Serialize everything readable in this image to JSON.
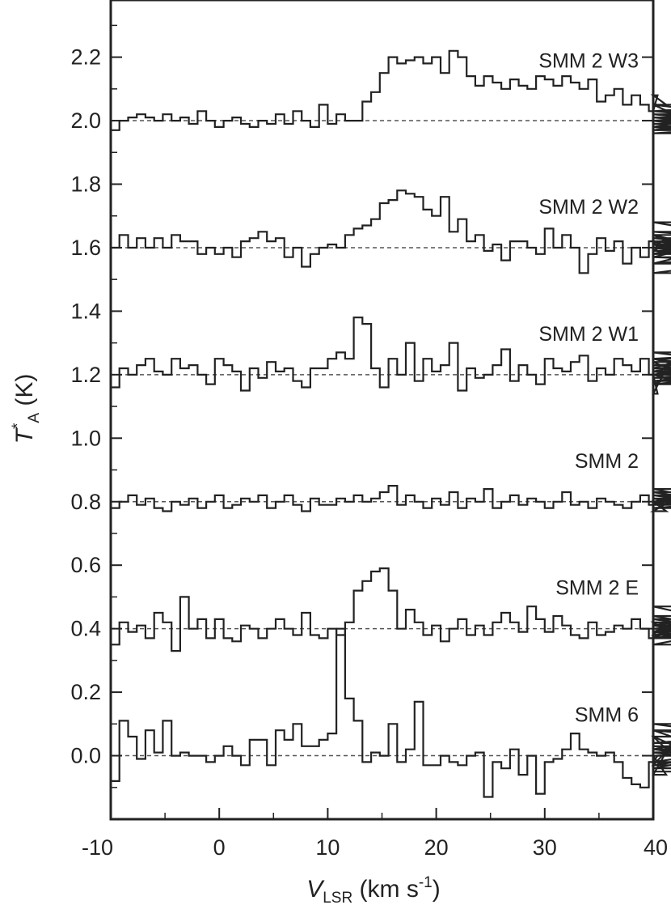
{
  "chart_data": {
    "type": "line",
    "xlabel": {
      "main": "V",
      "sub": "LSR",
      "unit": " (km s",
      "sup": "-1",
      "close": ")"
    },
    "ylabel": {
      "main": "T",
      "sup": "*",
      "sub": "A",
      "unit": " (K)"
    },
    "xlim": [
      -10,
      40
    ],
    "ylim": [
      -0.2,
      2.38
    ],
    "xticks": [
      -10,
      0,
      10,
      20,
      30,
      40
    ],
    "xtick_labels": [
      "-10",
      "0",
      "10",
      "20",
      "30",
      "40"
    ],
    "yticks": [
      0.0,
      0.2,
      0.4,
      0.6,
      0.8,
      1.0,
      1.2,
      1.4,
      1.6,
      1.8,
      2.0,
      2.2
    ],
    "ytick_labels": [
      "0.0",
      "0.2",
      "0.4",
      "0.6",
      "0.8",
      "1.0",
      "1.2",
      "1.4",
      "1.6",
      "1.8",
      "2.0",
      "2.2"
    ],
    "x_channels_start": -10,
    "x_channel_width": 0.8,
    "series": [
      {
        "name": "SMM 6",
        "baseline": 0.0,
        "label_x": 35,
        "label_y": 0.13,
        "values": [
          -0.08,
          0.11,
          0.06,
          -0.01,
          0.08,
          0.01,
          0.11,
          0.0,
          0.01,
          0.0,
          0.0,
          -0.02,
          0.0,
          0.03,
          0.0,
          -0.03,
          0.05,
          0.05,
          -0.03,
          0.08,
          0.05,
          0.1,
          0.03,
          0.03,
          0.05,
          0.07,
          0.4,
          0.18,
          0.11,
          -0.02,
          0.01,
          0.0,
          0.1,
          -0.02,
          0.02,
          0.17,
          -0.03,
          -0.03,
          0.0,
          -0.02,
          -0.03,
          0.0,
          0.01,
          -0.13,
          -0.02,
          -0.04,
          0.02,
          -0.06,
          0.0,
          -0.12,
          -0.02,
          -0.01,
          0.02,
          0.07,
          0.02,
          0.01,
          0.0,
          0.01,
          -0.02,
          -0.07,
          -0.09,
          -0.1,
          -0.02,
          0.0,
          -0.06,
          0.06,
          -0.03,
          0.1,
          0.08,
          0.02,
          0.06,
          -0.04,
          0.01,
          0.02,
          -0.02,
          0.03,
          0.0,
          0.01,
          -0.04,
          -0.03,
          0.04,
          0.08,
          0.03,
          0.0,
          0.02,
          -0.02,
          -0.05
        ]
      },
      {
        "name": "SMM 2 E",
        "baseline": 0.4,
        "label_x": 35,
        "label_y": 0.53,
        "values": [
          0.35,
          0.42,
          0.39,
          0.41,
          0.37,
          0.45,
          0.42,
          0.33,
          0.5,
          0.4,
          0.43,
          0.37,
          0.43,
          0.37,
          0.36,
          0.41,
          0.4,
          0.37,
          0.4,
          0.43,
          0.4,
          0.38,
          0.45,
          0.38,
          0.37,
          0.4,
          0.38,
          0.42,
          0.52,
          0.55,
          0.58,
          0.59,
          0.52,
          0.4,
          0.46,
          0.42,
          0.38,
          0.41,
          0.36,
          0.4,
          0.43,
          0.38,
          0.41,
          0.38,
          0.42,
          0.45,
          0.42,
          0.39,
          0.47,
          0.43,
          0.39,
          0.44,
          0.41,
          0.38,
          0.37,
          0.42,
          0.38,
          0.39,
          0.41,
          0.4,
          0.43,
          0.4,
          0.37,
          0.38,
          0.42,
          0.37,
          0.41,
          0.39,
          0.44,
          0.41,
          0.39,
          0.35,
          0.4,
          0.42,
          0.39,
          0.43,
          0.38,
          0.41,
          0.47,
          0.37,
          0.43,
          0.42,
          0.39,
          0.41,
          0.37,
          0.4,
          0.38
        ]
      },
      {
        "name": "SMM 2",
        "baseline": 0.8,
        "label_x": 35,
        "label_y": 0.93,
        "values": [
          0.78,
          0.8,
          0.82,
          0.79,
          0.81,
          0.78,
          0.77,
          0.8,
          0.79,
          0.81,
          0.78,
          0.8,
          0.82,
          0.78,
          0.79,
          0.81,
          0.8,
          0.82,
          0.78,
          0.8,
          0.82,
          0.79,
          0.77,
          0.81,
          0.79,
          0.79,
          0.81,
          0.8,
          0.82,
          0.8,
          0.81,
          0.83,
          0.85,
          0.79,
          0.82,
          0.8,
          0.78,
          0.81,
          0.79,
          0.83,
          0.78,
          0.81,
          0.8,
          0.84,
          0.78,
          0.8,
          0.82,
          0.79,
          0.81,
          0.8,
          0.78,
          0.8,
          0.83,
          0.79,
          0.8,
          0.78,
          0.81,
          0.8,
          0.79,
          0.78,
          0.8,
          0.82,
          0.79,
          0.8,
          0.77,
          0.81,
          0.79,
          0.82,
          0.8,
          0.83,
          0.8,
          0.84,
          0.79,
          0.81,
          0.78,
          0.8,
          0.82,
          0.8,
          0.79,
          0.81,
          0.8,
          0.78,
          0.82,
          0.79,
          0.8,
          0.78,
          0.79
        ]
      },
      {
        "name": "SMM 2 W1",
        "baseline": 1.2,
        "label_x": 35,
        "label_y": 1.33,
        "values": [
          1.16,
          1.22,
          1.2,
          1.23,
          1.25,
          1.21,
          1.2,
          1.25,
          1.22,
          1.23,
          1.2,
          1.17,
          1.25,
          1.23,
          1.21,
          1.15,
          1.22,
          1.19,
          1.24,
          1.21,
          1.22,
          1.18,
          1.16,
          1.22,
          1.22,
          1.25,
          1.27,
          1.25,
          1.38,
          1.36,
          1.22,
          1.16,
          1.25,
          1.2,
          1.3,
          1.18,
          1.25,
          1.21,
          1.23,
          1.3,
          1.15,
          1.22,
          1.19,
          1.2,
          1.23,
          1.28,
          1.18,
          1.23,
          1.2,
          1.17,
          1.25,
          1.22,
          1.21,
          1.24,
          1.26,
          1.18,
          1.22,
          1.2,
          1.25,
          1.23,
          1.21,
          1.25,
          1.2,
          1.14,
          1.22,
          1.24,
          1.2,
          1.17,
          1.23,
          1.21,
          1.25,
          1.19,
          1.21,
          1.17,
          1.2,
          1.25,
          1.27,
          1.22,
          1.18,
          1.23,
          1.25,
          1.18,
          1.22,
          1.17,
          1.21,
          1.19,
          1.2
        ]
      },
      {
        "name": "SMM 2 W2",
        "baseline": 1.6,
        "label_x": 35,
        "label_y": 1.73,
        "values": [
          1.6,
          1.64,
          1.6,
          1.63,
          1.6,
          1.63,
          1.6,
          1.64,
          1.62,
          1.62,
          1.58,
          1.6,
          1.58,
          1.6,
          1.57,
          1.62,
          1.63,
          1.65,
          1.62,
          1.63,
          1.57,
          1.6,
          1.54,
          1.58,
          1.6,
          1.61,
          1.6,
          1.64,
          1.66,
          1.67,
          1.69,
          1.74,
          1.75,
          1.78,
          1.77,
          1.76,
          1.72,
          1.7,
          1.76,
          1.65,
          1.69,
          1.62,
          1.64,
          1.59,
          1.61,
          1.56,
          1.62,
          1.62,
          1.6,
          1.58,
          1.66,
          1.6,
          1.64,
          1.6,
          1.52,
          1.58,
          1.63,
          1.59,
          1.62,
          1.55,
          1.6,
          1.57,
          1.62,
          1.6,
          1.61,
          1.59,
          1.64,
          1.58,
          1.62,
          1.55,
          1.6,
          1.64,
          1.58,
          1.62,
          1.61,
          1.58,
          1.65,
          1.62,
          1.57,
          1.68,
          1.6,
          1.63,
          1.57,
          1.55,
          1.6,
          1.52,
          1.6
        ]
      },
      {
        "name": "SMM 2 W3",
        "baseline": 2.0,
        "label_x": 35,
        "label_y": 2.19,
        "values": [
          1.97,
          2.0,
          2.01,
          2.02,
          2.01,
          2.0,
          2.02,
          2.0,
          2.01,
          1.99,
          2.03,
          2.0,
          1.98,
          2.0,
          2.01,
          1.99,
          1.98,
          2.0,
          1.99,
          2.02,
          1.99,
          2.03,
          2.0,
          1.98,
          2.05,
          1.99,
          2.02,
          2.0,
          2.0,
          2.06,
          2.09,
          2.15,
          2.2,
          2.18,
          2.19,
          2.2,
          2.18,
          2.2,
          2.15,
          2.22,
          2.2,
          2.14,
          2.11,
          2.14,
          2.12,
          2.1,
          2.13,
          2.11,
          2.1,
          2.14,
          2.13,
          2.11,
          2.14,
          2.12,
          2.1,
          2.13,
          2.06,
          2.08,
          2.1,
          2.05,
          2.08,
          2.05,
          2.03,
          2.08,
          2.05,
          2.02,
          2.01,
          2.0,
          1.98,
          1.96,
          1.97,
          2.0,
          1.98,
          2.03,
          2.05,
          2.01,
          2.0,
          2.03,
          1.99,
          1.98,
          2.0,
          2.02,
          2.0,
          1.96,
          2.0,
          1.99,
          2.0
        ]
      }
    ]
  }
}
